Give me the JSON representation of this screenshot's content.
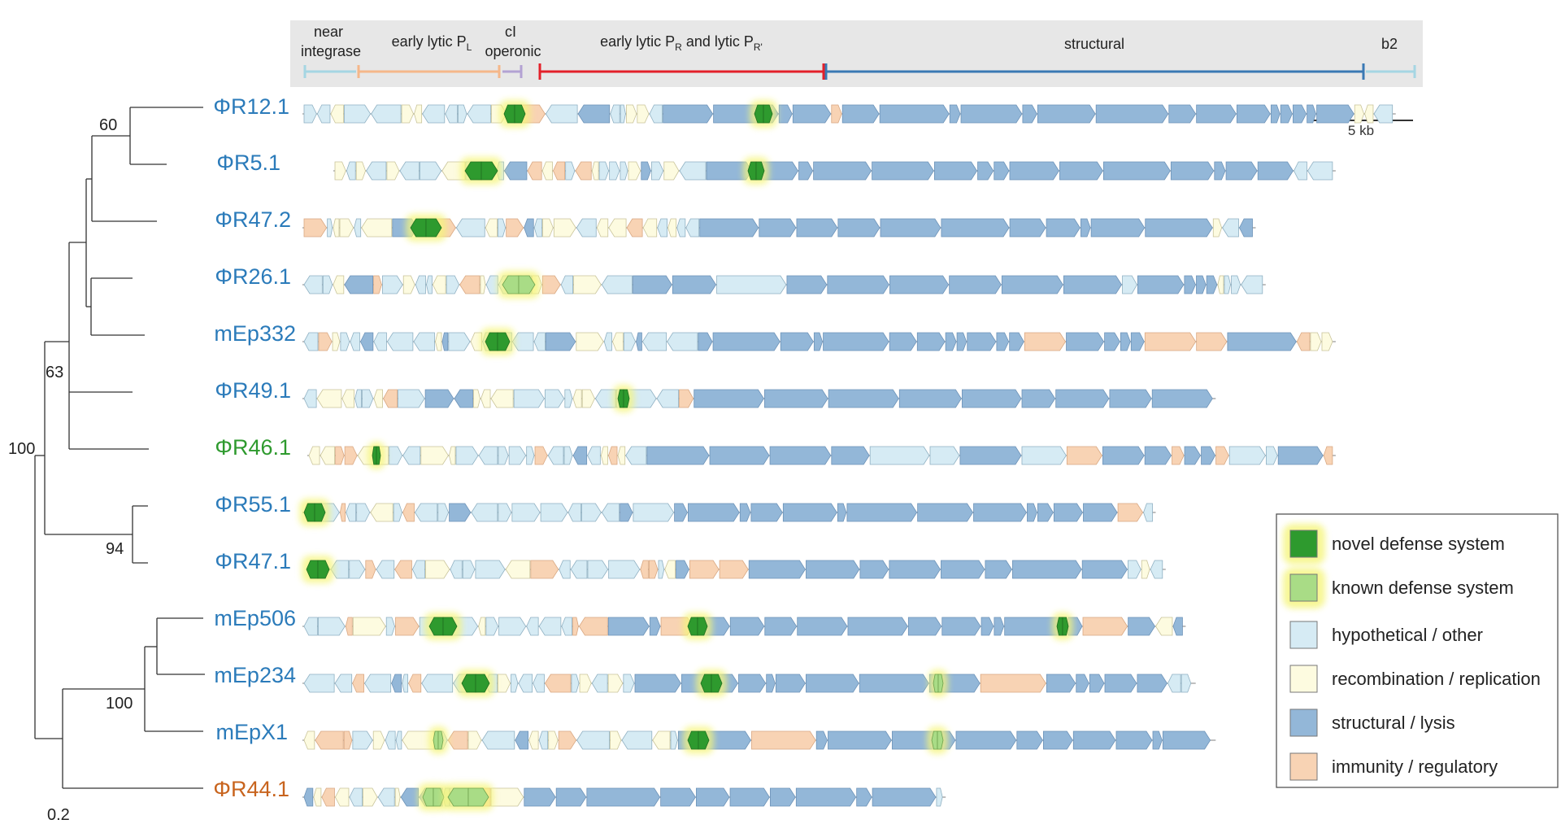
{
  "regions": {
    "near_integrase": [
      "near",
      "integrase"
    ],
    "early_lytic_pl": "early lytic P",
    "early_lytic_pl_sub": "L",
    "ci_operonic": [
      "cI",
      "operonic"
    ],
    "early_lytic_pr_a": "early lytic P",
    "early_lytic_pr_sub1": "R",
    "early_lytic_pr_b": " and lytic P",
    "early_lytic_pr_sub2": "R'",
    "structural": "structural",
    "b2": "b2"
  },
  "scale_bar": "5 kb",
  "tree": {
    "root_scale": "0.2",
    "bootstrap": [
      "60",
      "63",
      "100",
      "94",
      "100"
    ]
  },
  "phages": [
    {
      "name": "ΦR12.1",
      "color": "#2b7bba",
      "length_kb": 54.5
    },
    {
      "name": "ΦR5.1",
      "color": "#2b7bba",
      "length_kb": 51.5
    },
    {
      "name": "ΦR47.2",
      "color": "#2b7bba",
      "length_kb": 47.5
    },
    {
      "name": "ΦR26.1",
      "color": "#2b7bba",
      "length_kb": 48.0
    },
    {
      "name": "mEp332",
      "color": "#2b7bba",
      "length_kb": 51.5
    },
    {
      "name": "ΦR49.1",
      "color": "#2b7bba",
      "length_kb": 45.5
    },
    {
      "name": "ΦR46.1",
      "color": "#2e9a2e",
      "length_kb": 51.5
    },
    {
      "name": "ΦR55.1",
      "color": "#2b7bba",
      "length_kb": 42.5
    },
    {
      "name": "ΦR47.1",
      "color": "#2b7bba",
      "length_kb": 43.0
    },
    {
      "name": "mEp506",
      "color": "#2b7bba",
      "length_kb": 44.0
    },
    {
      "name": "mEp234",
      "color": "#2b7bba",
      "length_kb": 44.5
    },
    {
      "name": "mEpX1",
      "color": "#2b7bba",
      "length_kb": 45.5
    },
    {
      "name": "ΦR44.1",
      "color": "#c8641e",
      "length_kb": 32.0
    }
  ],
  "legend": [
    {
      "label": "novel defense system",
      "color": "#2e9a2e",
      "glow": true
    },
    {
      "label": "known defense system",
      "color": "#a9dc86",
      "glow": true
    },
    {
      "label": "hypothetical / other",
      "color": "#d6ebf4",
      "glow": false
    },
    {
      "label": "recombination / replication",
      "color": "#fdfbe0",
      "glow": false
    },
    {
      "label": "structural / lysis",
      "color": "#93b7d8",
      "glow": false
    },
    {
      "label": "immunity / regulatory",
      "color": "#f8d3b4",
      "glow": false
    }
  ],
  "colors": {
    "near_integrase": "#a5d6e3",
    "early_pl": "#f5b78a",
    "ci": "#b3a2d3",
    "early_pr": "#e3202a",
    "structural": "#3a79b4",
    "b2": "#a5d6e3",
    "header_bg": "#e7e7e7"
  }
}
